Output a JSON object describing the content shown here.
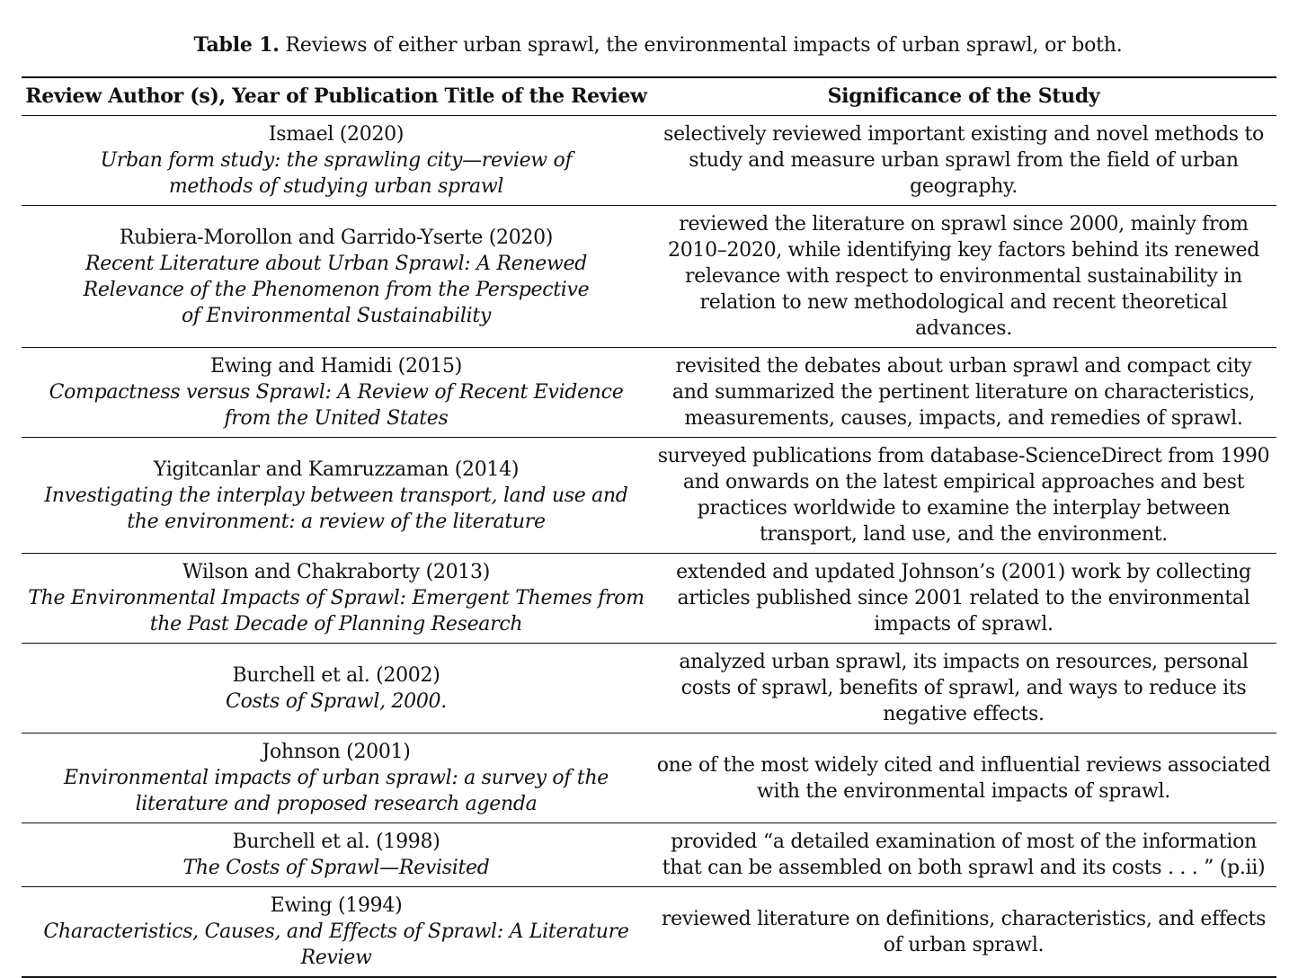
{
  "caption": {
    "label": "Table 1.",
    "text": "Reviews of either urban sprawl, the environmental impacts of urban sprawl, or both."
  },
  "table": {
    "headers": [
      "Review Author (s), Year of Publication Title of the Review",
      "Significance of the Study"
    ],
    "rows": [
      {
        "author": "Ismael (2020)",
        "title": "Urban form study: the sprawling city—review of methods of studying urban sprawl",
        "significance": "selectively reviewed important existing and novel methods to study and measure urban sprawl from the field of urban geography."
      },
      {
        "author": "Rubiera-Morollon and Garrido-Yserte (2020)",
        "title": "Recent Literature about Urban Sprawl: A Renewed Relevance of the Phenomenon from the Perspective of Environmental Sustainability",
        "significance": "reviewed the literature on sprawl since 2000, mainly from 2010–2020, while identifying key factors behind its renewed relevance with respect to environmental sustainability in relation to new methodological and recent theoretical advances."
      },
      {
        "author": "Ewing and Hamidi (2015)",
        "title": "Compactness versus Sprawl: A Review of Recent Evidence from the United States",
        "significance": "revisited the debates about urban sprawl and compact city and summarized the pertinent literature on characteristics, measurements, causes, impacts, and remedies of sprawl."
      },
      {
        "author": "Yigitcanlar and Kamruzzaman (2014)",
        "title": "Investigating the interplay between transport, land use and the environment: a review of the literature",
        "significance": "surveyed publications from database-ScienceDirect from 1990 and onwards on the latest empirical approaches and best practices worldwide to examine the interplay between transport, land use, and the environment."
      },
      {
        "author": "Wilson and Chakraborty (2013)",
        "title": "The Environmental Impacts of Sprawl: Emergent Themes from the Past Decade of Planning Research",
        "significance": "extended and updated Johnson’s (2001) work by collecting articles published since 2001 related to the environmental impacts of sprawl."
      },
      {
        "author": "Burchell et al. (2002)",
        "title": "Costs of Sprawl, 2000.",
        "significance": "analyzed urban sprawl, its impacts on resources, personal costs of sprawl, benefits of sprawl, and ways to reduce its negative effects."
      },
      {
        "author": "Johnson (2001)",
        "title": "Environmental impacts of urban sprawl: a survey of the literature and proposed research agenda",
        "significance": "one of the most widely cited and influential reviews associated with the environmental impacts of sprawl."
      },
      {
        "author": "Burchell et al. (1998)",
        "title": "The Costs of Sprawl—Revisited",
        "significance": "provided “a detailed examination of most of the information that can be assembled on both sprawl and its costs . . . ” (p.ii)"
      },
      {
        "author": "Ewing (1994)",
        "title": "Characteristics, Causes, and Effects of Sprawl: A Literature Review",
        "significance": "reviewed literature on definitions, characteristics, and effects of urban sprawl."
      }
    ]
  }
}
